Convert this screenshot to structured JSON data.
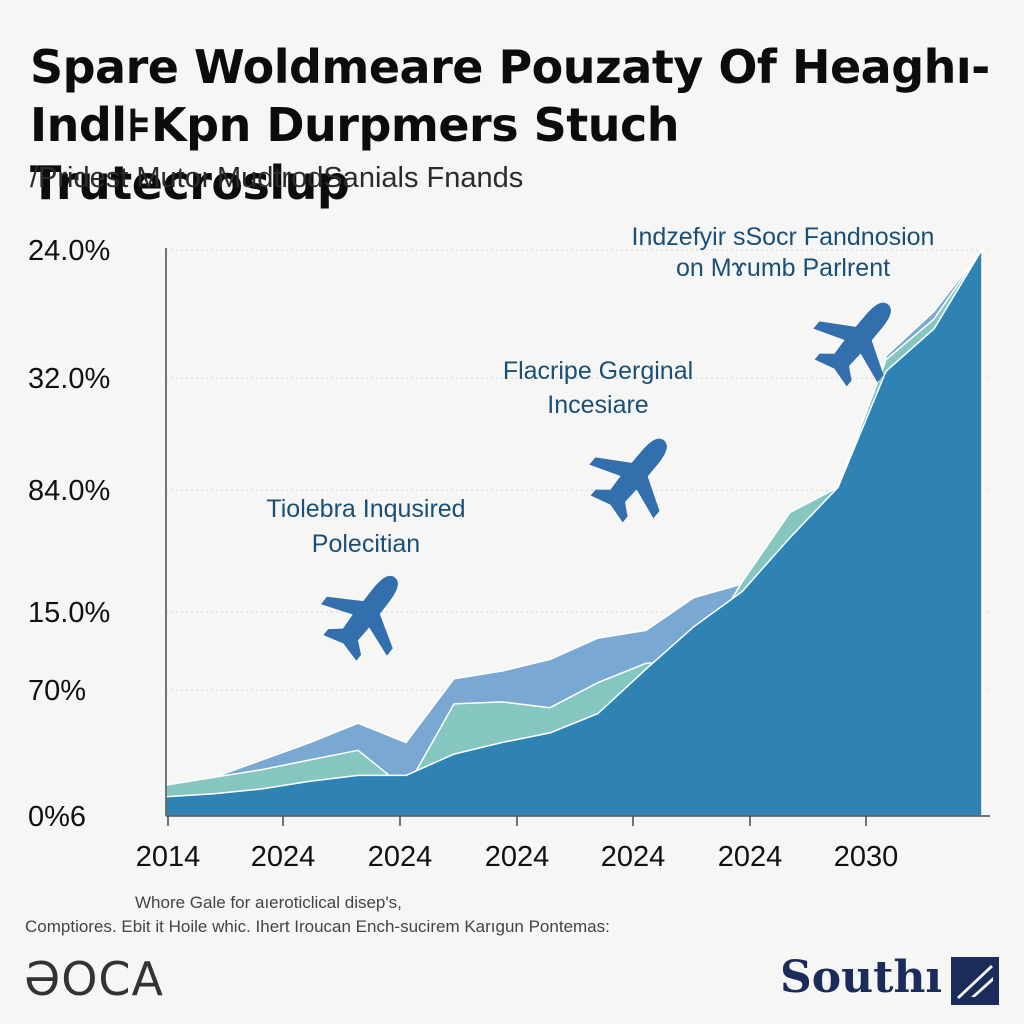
{
  "header": {
    "title": "Spare Woldmeare Pouzaty Of Heaghı- Indl⊧Kpn Durpmers Stuch Trutecroslup",
    "subtitle": "/Pridest Mutoı MudtrodSanials Fnands"
  },
  "chart_data": {
    "type": "area",
    "y_tick_labels": [
      "24.0%",
      "32.0%",
      "84.0%",
      "15.0%",
      "70%",
      "0%6"
    ],
    "x_tick_labels": [
      "2014",
      "2024",
      "2024",
      "2024",
      "2024",
      "2024",
      "2030"
    ],
    "x": [
      2014,
      2015,
      2016,
      2017,
      2018,
      2019,
      2020,
      2021,
      2022,
      2023,
      2024,
      2025,
      2026,
      2027,
      2028,
      2029,
      2030,
      2031
    ],
    "series": [
      {
        "values": [
          1.0,
          1.15,
          1.4,
          1.8,
          2.1,
          2.1,
          3.2,
          3.8,
          4.3,
          5.3,
          7.6,
          9.8,
          11.6,
          14.4,
          17.0,
          23.0,
          25.2,
          29.3
        ]
      },
      {
        "values": [
          1.6,
          2.0,
          2.4,
          2.9,
          3.4,
          1.4,
          5.8,
          5.9,
          5.6,
          6.9,
          7.9,
          8.0,
          12.1,
          15.7,
          17.0,
          23.6,
          25.7,
          29.3
        ]
      },
      {
        "values": [
          1.6,
          2.0,
          2.9,
          3.8,
          4.8,
          3.8,
          7.1,
          7.5,
          8.1,
          9.2,
          9.6,
          11.3,
          12.0,
          11.8,
          12.8,
          23.8,
          26.1,
          29.3
        ]
      }
    ],
    "colors": [
      "#2f83b4",
      "#86c6c0",
      "#79a8d3"
    ],
    "annotations": [
      {
        "lines": [
          "Tiolebra Inqusired",
          "Polecitian"
        ]
      },
      {
        "lines": [
          "Flacripe Gerginal",
          "Incesiare"
        ]
      },
      {
        "lines": [
          "Indzefyir sSocr Fandnosion",
          "on Mɤumb Parlrent"
        ]
      }
    ]
  },
  "footer": {
    "note_line1": "Whore Gale for aıeroticlical disep's,",
    "note_line2": "Comptiores. Ebit it Hoile whic. Ihert Iroucan Ench-sucirem Karıgun Pontemas:",
    "logo_left": "ƏOCA",
    "logo_right": "Southı"
  }
}
